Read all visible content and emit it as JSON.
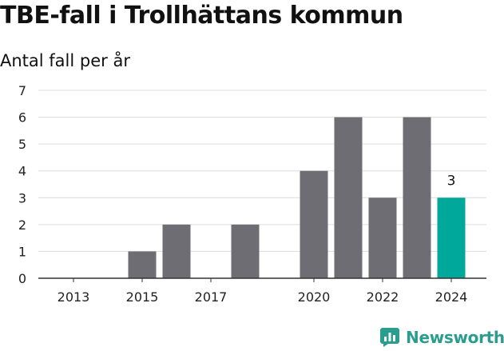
{
  "chart_data": {
    "type": "bar",
    "title": "TBE-fall i Trollhättans kommun",
    "subtitle": "Antal fall per år",
    "xlabel": "",
    "ylabel": "",
    "x": [
      2013,
      2014,
      2015,
      2016,
      2017,
      2018,
      2019,
      2020,
      2021,
      2022,
      2023,
      2024
    ],
    "values": [
      0,
      0,
      1,
      2,
      0,
      2,
      0,
      4,
      6,
      3,
      6,
      3
    ],
    "x_tick_labels": [
      "2013",
      "2015",
      "2017",
      "2020",
      "2022",
      "2024"
    ],
    "y_tick_labels": [
      "0",
      "1",
      "2",
      "3",
      "4",
      "5",
      "6",
      "7"
    ],
    "ylim": [
      0,
      7
    ],
    "grid": true,
    "legend": "none",
    "highlight_index": 11,
    "data_labels": [
      {
        "index": 11,
        "text": "3"
      }
    ],
    "colors": {
      "bar": "#6e6d74",
      "highlight": "#00a89c",
      "grid": "#dcdcdc",
      "axis": "#333333"
    }
  },
  "brand": {
    "name": "Newsworthy",
    "icon": "bar-chart-icon",
    "color": "#2a9d8f"
  }
}
